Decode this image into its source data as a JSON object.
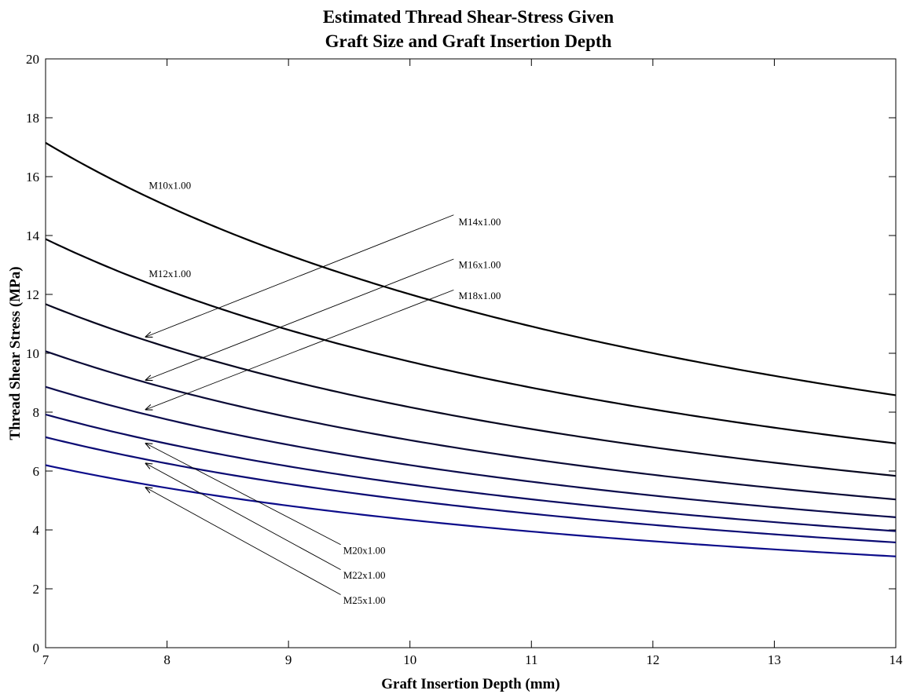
{
  "chart_data": {
    "type": "line",
    "title": [
      "Estimated Thread Shear-Stress Given",
      "Graft Size and Graft Insertion Depth"
    ],
    "xlabel": "Graft Insertion Depth (mm)",
    "ylabel": "Thread Shear Stress (MPa)",
    "xlim": [
      7,
      14
    ],
    "ylim": [
      0,
      20
    ],
    "xticks": [
      7,
      8,
      9,
      10,
      11,
      12,
      13,
      14
    ],
    "yticks": [
      0,
      2,
      4,
      6,
      8,
      10,
      12,
      14,
      16,
      18,
      20
    ],
    "grid": false,
    "model": "y = k / x",
    "x": [
      7,
      8,
      9,
      10,
      11,
      12,
      13,
      14
    ],
    "series": [
      {
        "name": "M10x1.00",
        "color": "#000000",
        "values": [
          17.15,
          15.01,
          13.34,
          12.01,
          10.91,
          10.0,
          9.23,
          8.58
        ]
      },
      {
        "name": "M12x1.00",
        "color": "#000008",
        "values": [
          13.88,
          12.15,
          10.8,
          9.72,
          8.83,
          8.1,
          7.48,
          6.94
        ]
      },
      {
        "name": "M14x1.00",
        "color": "#06061e",
        "values": [
          11.67,
          10.21,
          9.08,
          8.17,
          7.43,
          6.81,
          6.29,
          5.84
        ]
      },
      {
        "name": "M16x1.00",
        "color": "#0a0a36",
        "values": [
          10.07,
          8.81,
          7.83,
          7.05,
          6.41,
          5.87,
          5.42,
          5.04
        ]
      },
      {
        "name": "M18x1.00",
        "color": "#0b0b4c",
        "values": [
          8.86,
          7.75,
          6.89,
          6.2,
          5.64,
          5.17,
          4.77,
          4.43
        ]
      },
      {
        "name": "M20x1.00",
        "color": "#0a0a60",
        "values": [
          7.92,
          6.93,
          6.16,
          5.54,
          5.04,
          4.62,
          4.26,
          3.96
        ]
      },
      {
        "name": "M22x1.00",
        "color": "#0b0b74",
        "values": [
          7.15,
          6.26,
          5.56,
          5.01,
          4.55,
          4.17,
          3.85,
          3.58
        ]
      },
      {
        "name": "M25x1.00",
        "color": "#0c0c8a",
        "values": [
          6.2,
          5.43,
          4.82,
          4.34,
          3.95,
          3.62,
          3.34,
          3.1
        ]
      }
    ],
    "annotations": [
      {
        "text": "M10x1.00",
        "text_x": 7.85,
        "text_y": 15.7,
        "arrow": false,
        "target": "M10x1.00"
      },
      {
        "text": "M12x1.00",
        "text_x": 7.85,
        "text_y": 12.7,
        "arrow": false,
        "target": "M12x1.00"
      },
      {
        "text": "M14x1.00",
        "text_x": 10.4,
        "text_y": 14.45,
        "arrow": true,
        "tail_x": 10.36,
        "tail_y": 14.7,
        "head_x": 7.82,
        "head_y": 10.55
      },
      {
        "text": "M16x1.00",
        "text_x": 10.4,
        "text_y": 13.0,
        "arrow": true,
        "tail_x": 10.36,
        "tail_y": 13.2,
        "head_x": 7.82,
        "head_y": 9.08
      },
      {
        "text": "M18x1.00",
        "text_x": 10.4,
        "text_y": 11.95,
        "arrow": true,
        "tail_x": 10.36,
        "tail_y": 12.15,
        "head_x": 7.82,
        "head_y": 8.08
      },
      {
        "text": "M20x1.00",
        "text_x": 9.45,
        "text_y": 3.3,
        "arrow": true,
        "tail_x": 9.43,
        "tail_y": 3.5,
        "head_x": 7.82,
        "head_y": 6.95
      },
      {
        "text": "M22x1.00",
        "text_x": 9.45,
        "text_y": 2.45,
        "arrow": true,
        "tail_x": 9.43,
        "tail_y": 2.65,
        "head_x": 7.82,
        "head_y": 6.27
      },
      {
        "text": "M25x1.00",
        "text_x": 9.45,
        "text_y": 1.6,
        "arrow": true,
        "tail_x": 9.43,
        "tail_y": 1.8,
        "head_x": 7.82,
        "head_y": 5.45
      }
    ]
  }
}
